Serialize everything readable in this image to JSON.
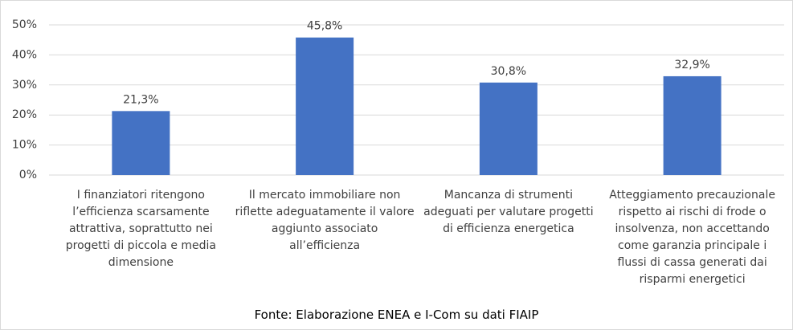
{
  "chart_data": {
    "type": "bar",
    "categories": [
      "I finanziatori ritengono l’efficienza scarsamente attrattiva, soprattutto nei progetti di piccola e media dimensione",
      "Il mercato immobiliare non riflette adeguatamente il valore aggiunto associato all’efficienza",
      "Mancanza di strumenti adeguati per valutare progetti di efficienza energetica",
      "Atteggiamento precauzionale rispetto ai rischi di frode o insolvenza, non accettando come garanzia principale i flussi di cassa generati dai risparmi energetici"
    ],
    "values": [
      21.3,
      45.8,
      30.8,
      32.9
    ],
    "value_labels": [
      "21,3%",
      "45,8%",
      "30,8%",
      "32,9%"
    ],
    "color": "#4472c4",
    "ylim": [
      0,
      50
    ],
    "yticks": [
      {
        "value": 0,
        "label": "0%"
      },
      {
        "value": 10,
        "label": "10%"
      },
      {
        "value": 20,
        "label": "20%"
      },
      {
        "value": 30,
        "label": "30%"
      },
      {
        "value": 40,
        "label": "40%"
      },
      {
        "value": 50,
        "label": "50%"
      }
    ],
    "grid": true,
    "caption": "Fonte: Elaborazione ENEA e I-Com su dati FIAIP"
  }
}
